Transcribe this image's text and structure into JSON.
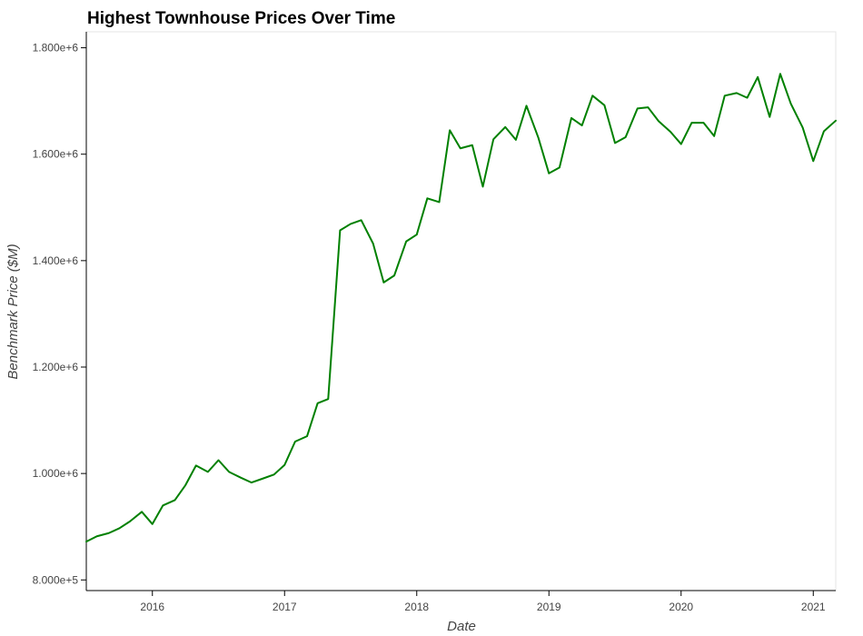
{
  "chart_data": {
    "type": "line",
    "title": "Highest Townhouse Prices Over Time",
    "xlabel": "Date",
    "ylabel": "Benchmark Price ($M)",
    "x_ticks": [
      {
        "label": "2016",
        "value": 2016.0
      },
      {
        "label": "2017",
        "value": 2017.0
      },
      {
        "label": "2018",
        "value": 2018.0
      },
      {
        "label": "2019",
        "value": 2019.0
      },
      {
        "label": "2020",
        "value": 2020.0
      },
      {
        "label": "2021",
        "value": 2021.0
      }
    ],
    "y_ticks": [
      {
        "label": "8.000e+5",
        "value": 800000
      },
      {
        "label": "1.000e+6",
        "value": 1000000
      },
      {
        "label": "1.200e+6",
        "value": 1200000
      },
      {
        "label": "1.400e+6",
        "value": 1400000
      },
      {
        "label": "1.600e+6",
        "value": 1600000
      },
      {
        "label": "1.800e+6",
        "value": 1800000
      }
    ],
    "xlim": [
      2015.5,
      2021.17
    ],
    "ylim": [
      780000,
      1830000
    ],
    "grid": false,
    "colors": {
      "line": "#008000"
    },
    "series": [
      {
        "values": [
          [
            2015.5,
            872000
          ],
          [
            2015.58,
            882000
          ],
          [
            2015.67,
            888000
          ],
          [
            2015.75,
            897000
          ],
          [
            2015.83,
            910000
          ],
          [
            2015.92,
            928000
          ],
          [
            2016.0,
            905000
          ],
          [
            2016.08,
            940000
          ],
          [
            2016.17,
            950000
          ],
          [
            2016.25,
            978000
          ],
          [
            2016.33,
            1015000
          ],
          [
            2016.42,
            1003000
          ],
          [
            2016.5,
            1025000
          ],
          [
            2016.58,
            1003000
          ],
          [
            2016.67,
            992000
          ],
          [
            2016.75,
            983000
          ],
          [
            2016.83,
            990000
          ],
          [
            2016.92,
            998000
          ],
          [
            2017.0,
            1016000
          ],
          [
            2017.08,
            1060000
          ],
          [
            2017.17,
            1070000
          ],
          [
            2017.25,
            1132000
          ],
          [
            2017.33,
            1140000
          ],
          [
            2017.42,
            1457000
          ],
          [
            2017.5,
            1469000
          ],
          [
            2017.58,
            1476000
          ],
          [
            2017.67,
            1432000
          ],
          [
            2017.75,
            1359000
          ],
          [
            2017.83,
            1372000
          ],
          [
            2017.92,
            1436000
          ],
          [
            2018.0,
            1449000
          ],
          [
            2018.08,
            1517000
          ],
          [
            2018.17,
            1510000
          ],
          [
            2018.25,
            1645000
          ],
          [
            2018.33,
            1611000
          ],
          [
            2018.42,
            1617000
          ],
          [
            2018.5,
            1539000
          ],
          [
            2018.58,
            1628000
          ],
          [
            2018.67,
            1651000
          ],
          [
            2018.75,
            1627000
          ],
          [
            2018.83,
            1691000
          ],
          [
            2018.92,
            1631000
          ],
          [
            2019.0,
            1564000
          ],
          [
            2019.08,
            1575000
          ],
          [
            2019.17,
            1668000
          ],
          [
            2019.25,
            1654000
          ],
          [
            2019.33,
            1710000
          ],
          [
            2019.42,
            1692000
          ],
          [
            2019.5,
            1621000
          ],
          [
            2019.58,
            1632000
          ],
          [
            2019.67,
            1686000
          ],
          [
            2019.75,
            1688000
          ],
          [
            2019.83,
            1662000
          ],
          [
            2019.92,
            1642000
          ],
          [
            2020.0,
            1619000
          ],
          [
            2020.08,
            1659000
          ],
          [
            2020.17,
            1659000
          ],
          [
            2020.25,
            1634000
          ],
          [
            2020.33,
            1710000
          ],
          [
            2020.42,
            1715000
          ],
          [
            2020.5,
            1706000
          ],
          [
            2020.58,
            1745000
          ],
          [
            2020.67,
            1670000
          ],
          [
            2020.75,
            1751000
          ],
          [
            2020.83,
            1695000
          ],
          [
            2020.92,
            1650000
          ],
          [
            2021.0,
            1587000
          ],
          [
            2021.08,
            1643000
          ],
          [
            2021.17,
            1663000
          ]
        ]
      }
    ]
  }
}
